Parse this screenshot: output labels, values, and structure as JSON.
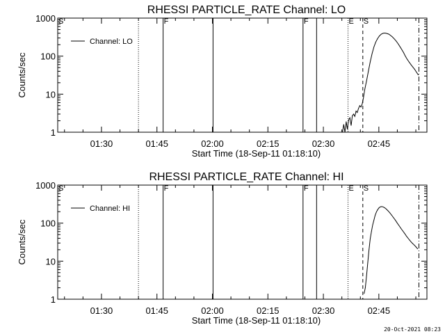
{
  "footer": {
    "timestamp": "20-Oct-2021 08:23"
  },
  "chart_data": [
    {
      "type": "line",
      "title": "RHESSI PARTICLE_RATE Channel: LO",
      "xlabel": "Start Time (18-Sep-11 01:18:10)",
      "ylabel": "Counts/sec",
      "y_scale": "log",
      "ylim": [
        1,
        1000
      ],
      "y_ticks": [
        1,
        10,
        100,
        1000
      ],
      "y_tick_labels": [
        "1",
        "10",
        "100",
        "1000"
      ],
      "x_ticks": [
        "01:30",
        "01:45",
        "02:00",
        "02:15",
        "02:30",
        "02:45"
      ],
      "xlim": [
        "01:18:10",
        "02:58:00"
      ],
      "grid": false,
      "legend": {
        "position": "top-left",
        "entries": [
          "Channel: LO"
        ]
      },
      "markers": [
        {
          "time": "01:18:10",
          "label": "S",
          "style": "none"
        },
        {
          "time": "01:40:00",
          "label": "",
          "style": "dotted"
        },
        {
          "time": "01:46:40",
          "label": "F",
          "style": "solid"
        },
        {
          "time": "02:00:10",
          "label": "",
          "style": "solid"
        },
        {
          "time": "02:24:30",
          "label": "F",
          "style": "solid"
        },
        {
          "time": "02:28:10",
          "label": "",
          "style": "solid"
        },
        {
          "time": "02:36:40",
          "label": "E",
          "style": "dotted"
        },
        {
          "time": "02:40:40",
          "label": "S",
          "style": "dashed"
        },
        {
          "time": "02:55:50",
          "label": "",
          "style": "dashdot"
        }
      ],
      "series": [
        {
          "name": "Channel: LO",
          "x": [
            "02:35:10",
            "02:35:30",
            "02:35:50",
            "02:36:10",
            "02:36:30",
            "02:36:50",
            "02:37:10",
            "02:37:30",
            "02:37:50",
            "02:38:10",
            "02:38:30",
            "02:38:50",
            "02:39:10",
            "02:39:30",
            "02:39:50",
            "02:40:10",
            "02:40:30",
            "02:40:50",
            "02:41:10",
            "02:41:40",
            "02:42:10",
            "02:42:40",
            "02:43:10",
            "02:43:40",
            "02:44:10",
            "02:44:40",
            "02:45:10",
            "02:45:40",
            "02:46:10",
            "02:46:40",
            "02:47:10",
            "02:47:40",
            "02:48:10",
            "02:48:40",
            "02:49:10",
            "02:49:40",
            "02:50:10",
            "02:50:40",
            "02:51:10",
            "02:51:40",
            "02:52:10",
            "02:52:40",
            "02:53:10",
            "02:53:40",
            "02:54:10",
            "02:54:40",
            "02:55:10",
            "02:55:40"
          ],
          "y": [
            1.0,
            1.6,
            1.0,
            1.9,
            1.2,
            2.1,
            2.4,
            1.5,
            2.7,
            3.0,
            2.6,
            3.6,
            3.3,
            4.2,
            5.0,
            4.6,
            5.5,
            8.0,
            13,
            22,
            40,
            70,
            115,
            175,
            235,
            290,
            340,
            380,
            400,
            405,
            395,
            380,
            350,
            320,
            285,
            250,
            215,
            180,
            150,
            125,
            100,
            83,
            70,
            60,
            52,
            45,
            38,
            32
          ]
        }
      ]
    },
    {
      "type": "line",
      "title": "RHESSI PARTICLE_RATE Channel: HI",
      "xlabel": "Start Time (18-Sep-11 01:18:10)",
      "ylabel": "Counts/sec",
      "y_scale": "log",
      "ylim": [
        1,
        1000
      ],
      "y_ticks": [
        1,
        10,
        100,
        1000
      ],
      "y_tick_labels": [
        "1",
        "10",
        "100",
        "1000"
      ],
      "x_ticks": [
        "01:30",
        "01:45",
        "02:00",
        "02:15",
        "02:30",
        "02:45"
      ],
      "xlim": [
        "01:18:10",
        "02:58:00"
      ],
      "grid": false,
      "legend": {
        "position": "top-left",
        "entries": [
          "Channel: HI"
        ]
      },
      "markers": [
        {
          "time": "01:18:10",
          "label": "S",
          "style": "none"
        },
        {
          "time": "01:40:00",
          "label": "",
          "style": "dotted"
        },
        {
          "time": "01:46:40",
          "label": "F",
          "style": "solid"
        },
        {
          "time": "02:00:10",
          "label": "",
          "style": "solid"
        },
        {
          "time": "02:24:30",
          "label": "F",
          "style": "solid"
        },
        {
          "time": "02:28:10",
          "label": "",
          "style": "solid"
        },
        {
          "time": "02:36:40",
          "label": "E",
          "style": "dotted"
        },
        {
          "time": "02:40:40",
          "label": "S",
          "style": "dashed"
        },
        {
          "time": "02:55:50",
          "label": "",
          "style": "dashdot"
        }
      ],
      "series": [
        {
          "name": "Channel: HI",
          "x": [
            "02:41:00",
            "02:41:20",
            "02:41:40",
            "02:42:00",
            "02:42:20",
            "02:42:40",
            "02:43:00",
            "02:43:20",
            "02:43:40",
            "02:44:00",
            "02:44:20",
            "02:44:40",
            "02:45:00",
            "02:45:20",
            "02:45:40",
            "02:46:00",
            "02:46:20",
            "02:46:40",
            "02:47:00",
            "02:47:30",
            "02:48:00",
            "02:48:30",
            "02:49:00",
            "02:49:30",
            "02:50:00",
            "02:50:30",
            "02:51:00",
            "02:51:30",
            "02:52:00",
            "02:52:30",
            "02:53:00",
            "02:53:30",
            "02:54:00",
            "02:54:30",
            "02:55:00",
            "02:55:30"
          ],
          "y": [
            1.4,
            2.0,
            4.0,
            9.0,
            20,
            38,
            60,
            90,
            120,
            160,
            195,
            225,
            250,
            265,
            272,
            270,
            262,
            250,
            235,
            210,
            185,
            160,
            138,
            118,
            100,
            85,
            72,
            62,
            53,
            45,
            39,
            34,
            30,
            27,
            24,
            21
          ]
        }
      ]
    }
  ]
}
